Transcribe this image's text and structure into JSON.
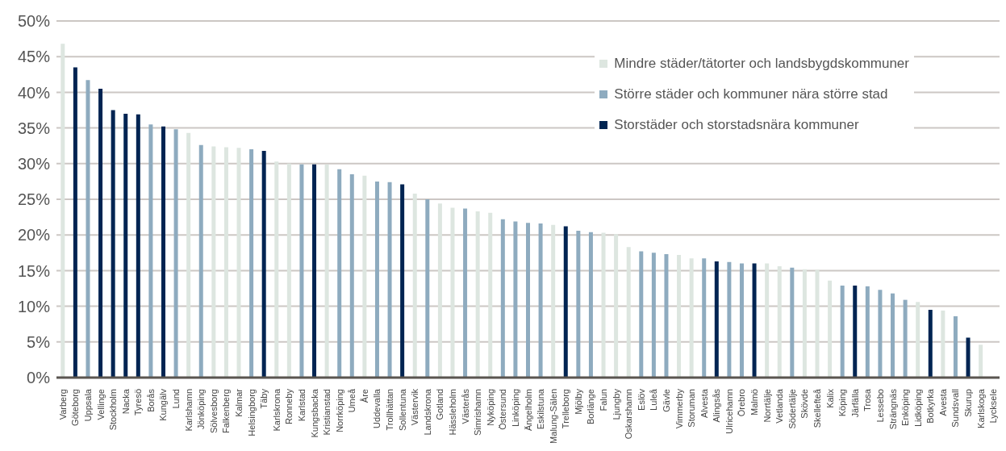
{
  "chart_data": {
    "type": "bar",
    "stacked": true,
    "grid": "y",
    "legend": "top right",
    "categories": [
      "Varberg",
      "Göteborg",
      "Uppsala",
      "Vellinge",
      "Stockholm",
      "Nacka",
      "Tyresö",
      "Borås",
      "Kungälv",
      "Lund",
      "Karlshamn",
      "Jönköping",
      "Sölvesborg",
      "Falkenberg",
      "Kalmar",
      "Helsingborg",
      "Täby",
      "Karlskrona",
      "Ronneby",
      "Karlstad",
      "Kungsbacka",
      "Kristianstad",
      "Norrköping",
      "Umeå",
      "Åre",
      "Uddevalla",
      "Trollhättan",
      "Sollentuna",
      "Västervik",
      "Landskrona",
      "Gotland",
      "Hässleholm",
      "Västerås",
      "Simrishamn",
      "Nyköping",
      "Östersund",
      "Linköping",
      "Ängelholm",
      "Eskilstuna",
      "Malung-Sälen",
      "Trelleborg",
      "Mjölby",
      "Borlänge",
      "Falun",
      "Ljungby",
      "Oskarshamn",
      "Eslöv",
      "Luleå",
      "Gävle",
      "Vimmerby",
      "Storuman",
      "Alvesta",
      "Alingsås",
      "Ulricehamn",
      "Örebro",
      "Malmö",
      "Norrtälje",
      "Vetlanda",
      "Södertälje",
      "Skövde",
      "Skellefteå",
      "Kalix",
      "Köping",
      "Järfälla",
      "Trosa",
      "Lessebo",
      "Strängnäs",
      "Enköping",
      "Lidköping",
      "Botkyrka",
      "Avesta",
      "Sundsvall",
      "Skurup",
      "Karlskoga",
      "Lycksele"
    ],
    "series": [
      {
        "name": "Mindre städer/tätorter och landsbygdskommuner",
        "color": "#dde6e0",
        "values": [
          46.8,
          null,
          null,
          null,
          null,
          null,
          null,
          null,
          null,
          null,
          34.3,
          null,
          32.4,
          32.3,
          32.2,
          null,
          null,
          30.3,
          30.0,
          null,
          null,
          29.9,
          null,
          null,
          28.3,
          null,
          null,
          null,
          25.8,
          null,
          24.4,
          23.8,
          null,
          23.3,
          23.1,
          null,
          null,
          null,
          null,
          21.4,
          null,
          null,
          null,
          20.3,
          20.1,
          18.3,
          null,
          null,
          null,
          17.2,
          16.7,
          null,
          null,
          null,
          null,
          null,
          16.0,
          15.6,
          null,
          15.2,
          15.1,
          13.6,
          null,
          null,
          null,
          null,
          null,
          null,
          10.6,
          null,
          9.4,
          null,
          null,
          4.6,
          null
        ]
      },
      {
        "name": "Större städer och kommuner nära större stad",
        "color": "#8eabbf",
        "values": [
          null,
          null,
          41.7,
          null,
          null,
          null,
          null,
          35.5,
          null,
          34.8,
          null,
          32.6,
          null,
          null,
          null,
          32.0,
          null,
          null,
          null,
          29.9,
          null,
          null,
          29.2,
          28.5,
          null,
          27.5,
          27.4,
          null,
          null,
          25.0,
          null,
          null,
          23.7,
          null,
          null,
          22.2,
          21.9,
          21.7,
          21.6,
          null,
          null,
          20.6,
          20.4,
          null,
          null,
          null,
          17.7,
          17.5,
          17.3,
          null,
          null,
          16.7,
          null,
          16.2,
          16.0,
          null,
          null,
          null,
          15.4,
          null,
          null,
          null,
          12.9,
          null,
          12.8,
          12.3,
          11.8,
          10.9,
          null,
          null,
          null,
          8.6,
          null,
          null,
          null
        ]
      },
      {
        "name": "Storstäder och storstadsnära kommuner",
        "color": "#002452",
        "values": [
          null,
          43.5,
          null,
          40.5,
          37.5,
          37.0,
          36.9,
          null,
          35.2,
          null,
          null,
          null,
          null,
          null,
          null,
          null,
          31.8,
          null,
          null,
          null,
          29.9,
          null,
          null,
          null,
          null,
          null,
          null,
          27.1,
          null,
          null,
          null,
          null,
          null,
          null,
          null,
          null,
          null,
          null,
          null,
          null,
          21.2,
          null,
          null,
          null,
          null,
          null,
          null,
          null,
          null,
          null,
          null,
          null,
          16.3,
          null,
          null,
          16.0,
          null,
          null,
          null,
          null,
          null,
          null,
          null,
          12.9,
          null,
          null,
          null,
          null,
          null,
          9.5,
          null,
          null,
          5.6,
          null,
          null
        ]
      }
    ],
    "ylim": [
      0,
      50
    ],
    "yticks": [
      {
        "value": 0,
        "label": "0%"
      },
      {
        "value": 5,
        "label": "5%"
      },
      {
        "value": 10,
        "label": "10%"
      },
      {
        "value": 15,
        "label": "15%"
      },
      {
        "value": 20,
        "label": "20%"
      },
      {
        "value": 25,
        "label": "25%"
      },
      {
        "value": 30,
        "label": "30%"
      },
      {
        "value": 35,
        "label": "35%"
      },
      {
        "value": 40,
        "label": "40%"
      },
      {
        "value": 45,
        "label": "45%"
      },
      {
        "value": 50,
        "label": "50%"
      }
    ]
  }
}
